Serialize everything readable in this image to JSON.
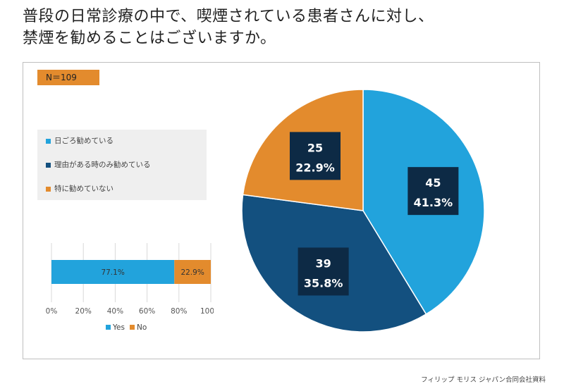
{
  "title_line1": "普段の日常診療の中で、喫煙されている患者さんに対し、",
  "title_line2": "禁煙を勧めることはございますか。",
  "badge": "N＝109",
  "footer": "フィリップ モリス ジャパン合同会社資料",
  "colors": {
    "light_blue": "#22a3dc",
    "dark_blue": "#13507f",
    "orange": "#e38b2d",
    "label_box": "#0d2a45"
  },
  "chart_data": [
    {
      "type": "pie",
      "slices": [
        {
          "name": "日ごろ勧めている",
          "count": "45",
          "percent": "41.3%",
          "value": 41.3,
          "color": "#22a3dc"
        },
        {
          "name": "理由がある時のみ勧めている",
          "count": "39",
          "percent": "35.8%",
          "value": 35.8,
          "color": "#13507f"
        },
        {
          "name": "特に勧めていない",
          "count": "25",
          "percent": "22.9%",
          "value": 22.9,
          "color": "#e38b2d"
        }
      ],
      "legend_position": "left"
    },
    {
      "type": "bar",
      "orientation": "horizontal-stacked",
      "series": [
        {
          "name": "Yes",
          "value": 77.1,
          "label": "77.1%",
          "color": "#22a3dc"
        },
        {
          "name": "No",
          "value": 22.9,
          "label": "22.9%",
          "color": "#e38b2d"
        }
      ],
      "x_ticks": [
        "0%",
        "20%",
        "40%",
        "60%",
        "80%",
        "100%"
      ],
      "xlim": [
        0,
        100
      ],
      "grid": true,
      "legend_position": "bottom"
    }
  ]
}
